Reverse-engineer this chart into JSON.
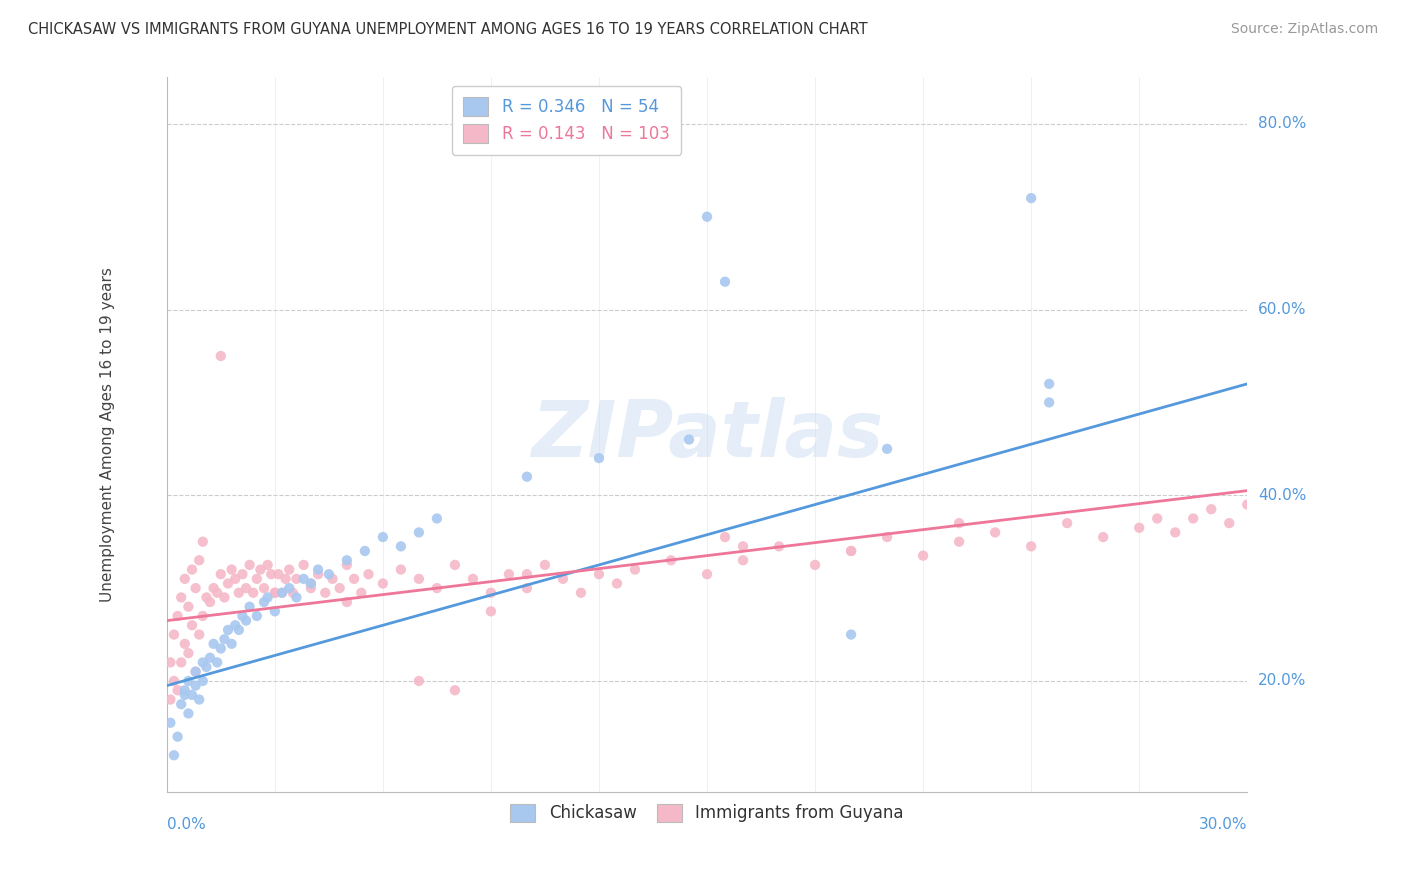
{
  "title": "CHICKASAW VS IMMIGRANTS FROM GUYANA UNEMPLOYMENT AMONG AGES 16 TO 19 YEARS CORRELATION CHART",
  "source": "Source: ZipAtlas.com",
  "ylabel_label": "Unemployment Among Ages 16 to 19 years",
  "xmin": 0.0,
  "xmax": 0.3,
  "ymin": 0.08,
  "ymax": 0.85,
  "chickasaw_color": "#a8c8f0",
  "guyana_color": "#f5b8c8",
  "chickasaw_R": 0.346,
  "chickasaw_N": 54,
  "guyana_R": 0.143,
  "guyana_N": 103,
  "trend_chickasaw_color": "#5599dd",
  "trend_guyana_color": "#ee7799",
  "background_color": "#ffffff",
  "chickasaw_trend_x0": 0.0,
  "chickasaw_trend_y0": 0.195,
  "chickasaw_trend_x1": 0.3,
  "chickasaw_trend_y1": 0.52,
  "guyana_trend_x0": 0.0,
  "guyana_trend_y0": 0.265,
  "guyana_trend_x1": 0.3,
  "guyana_trend_y1": 0.405,
  "chickasaw_x": [
    0.001,
    0.002,
    0.003,
    0.004,
    0.005,
    0.005,
    0.006,
    0.006,
    0.007,
    0.008,
    0.008,
    0.009,
    0.01,
    0.01,
    0.011,
    0.012,
    0.013,
    0.014,
    0.015,
    0.016,
    0.017,
    0.018,
    0.019,
    0.02,
    0.021,
    0.022,
    0.023,
    0.025,
    0.027,
    0.028,
    0.03,
    0.032,
    0.034,
    0.036,
    0.038,
    0.04,
    0.042,
    0.045,
    0.05,
    0.055,
    0.06,
    0.065,
    0.07,
    0.075,
    0.1,
    0.12,
    0.145,
    0.15,
    0.155,
    0.19,
    0.2,
    0.24,
    0.245,
    0.245
  ],
  "chickasaw_y": [
    0.155,
    0.12,
    0.14,
    0.175,
    0.185,
    0.19,
    0.165,
    0.2,
    0.185,
    0.195,
    0.21,
    0.18,
    0.22,
    0.2,
    0.215,
    0.225,
    0.24,
    0.22,
    0.235,
    0.245,
    0.255,
    0.24,
    0.26,
    0.255,
    0.27,
    0.265,
    0.28,
    0.27,
    0.285,
    0.29,
    0.275,
    0.295,
    0.3,
    0.29,
    0.31,
    0.305,
    0.32,
    0.315,
    0.33,
    0.34,
    0.355,
    0.345,
    0.36,
    0.375,
    0.42,
    0.44,
    0.46,
    0.7,
    0.63,
    0.25,
    0.45,
    0.72,
    0.5,
    0.52
  ],
  "guyana_x": [
    0.001,
    0.001,
    0.002,
    0.002,
    0.003,
    0.003,
    0.004,
    0.004,
    0.005,
    0.005,
    0.006,
    0.006,
    0.007,
    0.007,
    0.008,
    0.008,
    0.009,
    0.009,
    0.01,
    0.01,
    0.011,
    0.012,
    0.013,
    0.014,
    0.015,
    0.015,
    0.016,
    0.017,
    0.018,
    0.019,
    0.02,
    0.021,
    0.022,
    0.023,
    0.024,
    0.025,
    0.026,
    0.027,
    0.028,
    0.029,
    0.03,
    0.031,
    0.032,
    0.033,
    0.034,
    0.035,
    0.036,
    0.038,
    0.04,
    0.042,
    0.044,
    0.046,
    0.048,
    0.05,
    0.052,
    0.054,
    0.056,
    0.06,
    0.065,
    0.07,
    0.075,
    0.08,
    0.085,
    0.09,
    0.095,
    0.1,
    0.105,
    0.11,
    0.115,
    0.12,
    0.125,
    0.13,
    0.14,
    0.15,
    0.16,
    0.17,
    0.18,
    0.19,
    0.2,
    0.21,
    0.22,
    0.23,
    0.24,
    0.25,
    0.26,
    0.27,
    0.275,
    0.28,
    0.285,
    0.29,
    0.295,
    0.3,
    0.155,
    0.19,
    0.22,
    0.16,
    0.03,
    0.04,
    0.05,
    0.07,
    0.08,
    0.09,
    0.1
  ],
  "guyana_y": [
    0.18,
    0.22,
    0.2,
    0.25,
    0.19,
    0.27,
    0.22,
    0.29,
    0.24,
    0.31,
    0.23,
    0.28,
    0.26,
    0.32,
    0.21,
    0.3,
    0.25,
    0.33,
    0.27,
    0.35,
    0.29,
    0.285,
    0.3,
    0.295,
    0.315,
    0.55,
    0.29,
    0.305,
    0.32,
    0.31,
    0.295,
    0.315,
    0.3,
    0.325,
    0.295,
    0.31,
    0.32,
    0.3,
    0.325,
    0.315,
    0.295,
    0.315,
    0.295,
    0.31,
    0.32,
    0.295,
    0.31,
    0.325,
    0.3,
    0.315,
    0.295,
    0.31,
    0.3,
    0.325,
    0.31,
    0.295,
    0.315,
    0.305,
    0.32,
    0.31,
    0.3,
    0.325,
    0.31,
    0.295,
    0.315,
    0.3,
    0.325,
    0.31,
    0.295,
    0.315,
    0.305,
    0.32,
    0.33,
    0.315,
    0.33,
    0.345,
    0.325,
    0.34,
    0.355,
    0.335,
    0.35,
    0.36,
    0.345,
    0.37,
    0.355,
    0.365,
    0.375,
    0.36,
    0.375,
    0.385,
    0.37,
    0.39,
    0.355,
    0.34,
    0.37,
    0.345,
    0.295,
    0.305,
    0.285,
    0.2,
    0.19,
    0.275,
    0.315
  ],
  "ytick_values": [
    0.2,
    0.4,
    0.6,
    0.8
  ],
  "ytick_labels": [
    "20.0%",
    "40.0%",
    "60.0%",
    "80.0%"
  ],
  "xtick_left_label": "0.0%",
  "xtick_right_label": "30.0%"
}
